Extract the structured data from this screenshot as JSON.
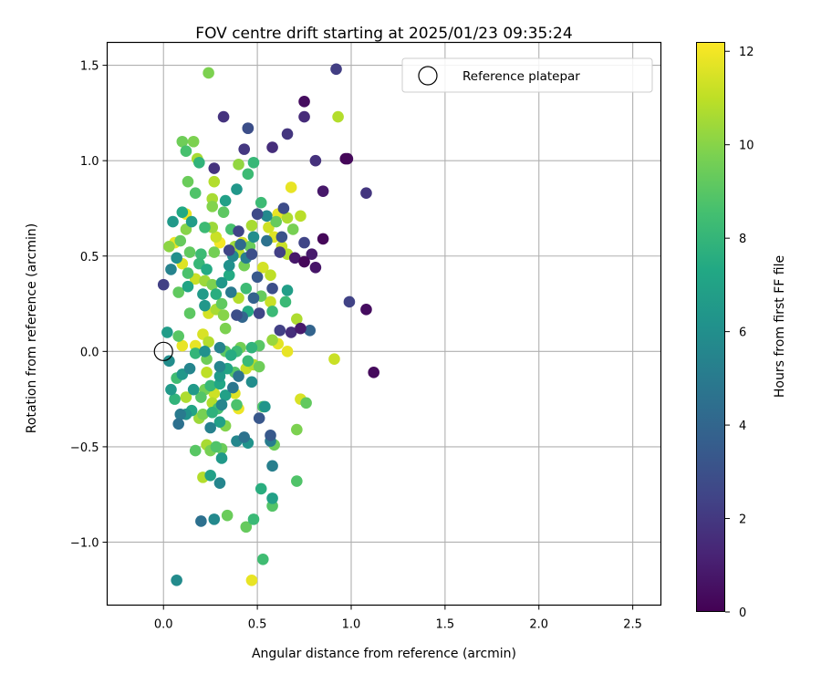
{
  "chart_data": {
    "type": "scatter",
    "title": "FOV centre drift starting at 2025/01/23 09:35:24",
    "xlabel": "Angular distance from reference (arcmin)",
    "ylabel": "Rotation from reference (arcmin)",
    "xlim": [
      -0.3,
      2.65
    ],
    "ylim": [
      -1.33,
      1.62
    ],
    "xticks": [
      0.0,
      0.5,
      1.0,
      1.5,
      2.0,
      2.5
    ],
    "xtick_labels": [
      "0.0",
      "0.5",
      "1.0",
      "1.5",
      "2.0",
      "2.5"
    ],
    "yticks": [
      -1.0,
      -0.5,
      0.0,
      0.5,
      1.0,
      1.5
    ],
    "ytick_labels": [
      "−1.0",
      "−0.5",
      "0.0",
      "0.5",
      "1.0",
      "1.5"
    ],
    "grid": true,
    "legend": {
      "placement": "top-right",
      "entries": [
        "Reference platepar"
      ]
    },
    "reference_point": {
      "x": 0.0,
      "y": 0.0,
      "label": "Reference platepar"
    },
    "colorbar": {
      "label": "Hours from first FF file",
      "colormap": "viridis",
      "min": 0,
      "max": 12.2,
      "ticks": [
        0,
        2,
        4,
        6,
        8,
        10,
        12
      ],
      "tick_labels": [
        "0",
        "2",
        "4",
        "6",
        "8",
        "10",
        "12"
      ]
    },
    "points": [
      [
        0.92,
        1.48,
        2.2
      ],
      [
        0.75,
        1.31,
        0.4
      ],
      [
        0.75,
        1.23,
        1.5
      ],
      [
        0.32,
        1.23,
        1.8
      ],
      [
        0.93,
        1.23,
        10.8
      ],
      [
        0.24,
        1.46,
        9.8
      ],
      [
        0.45,
        1.17,
        3.2
      ],
      [
        0.66,
        1.14,
        1.9
      ],
      [
        0.58,
        1.07,
        1.6
      ],
      [
        0.43,
        1.06,
        2.0
      ],
      [
        0.98,
        1.01,
        0.3
      ],
      [
        0.81,
        1.0,
        1.7
      ],
      [
        0.27,
        0.96,
        1.8
      ],
      [
        0.1,
        1.1,
        9.5
      ],
      [
        0.16,
        1.1,
        9.8
      ],
      [
        0.12,
        1.05,
        8.6
      ],
      [
        0.18,
        1.01,
        10.6
      ],
      [
        0.19,
        0.99,
        7.9
      ],
      [
        0.4,
        0.98,
        10.2
      ],
      [
        0.48,
        0.99,
        8.1
      ],
      [
        0.45,
        0.93,
        8.3
      ],
      [
        0.13,
        0.89,
        9.4
      ],
      [
        0.27,
        0.89,
        10.8
      ],
      [
        0.68,
        0.86,
        11.8
      ],
      [
        0.85,
        0.84,
        0.8
      ],
      [
        1.08,
        0.83,
        1.9
      ],
      [
        0.17,
        0.83,
        8.8
      ],
      [
        0.26,
        0.8,
        10.6
      ],
      [
        0.33,
        0.79,
        6.9
      ],
      [
        0.39,
        0.85,
        6.4
      ],
      [
        0.26,
        0.76,
        9.9
      ],
      [
        0.52,
        0.78,
        8.3
      ],
      [
        0.64,
        0.75,
        2.8
      ],
      [
        0.73,
        0.71,
        10.9
      ],
      [
        0.32,
        0.73,
        9.1
      ],
      [
        0.12,
        0.72,
        11.8
      ],
      [
        0.1,
        0.73,
        7.3
      ],
      [
        0.05,
        0.68,
        6.5
      ],
      [
        0.15,
        0.68,
        6.7
      ],
      [
        0.22,
        0.65,
        8.3
      ],
      [
        0.26,
        0.65,
        10.4
      ],
      [
        0.4,
        0.63,
        2.5
      ],
      [
        0.48,
        0.6,
        5.9
      ],
      [
        0.56,
        0.65,
        11.3
      ],
      [
        0.6,
        0.68,
        9.3
      ],
      [
        0.66,
        0.7,
        10.7
      ],
      [
        0.69,
        0.64,
        9.7
      ],
      [
        0.12,
        0.64,
        10.0
      ],
      [
        0.09,
        0.58,
        9.3
      ],
      [
        0.03,
        0.55,
        10.1
      ],
      [
        0.06,
        0.57,
        11.8
      ],
      [
        0.0,
        0.35,
        2.3
      ],
      [
        0.04,
        0.43,
        5.4
      ],
      [
        0.07,
        0.49,
        6.0
      ],
      [
        0.1,
        0.46,
        11.6
      ],
      [
        0.14,
        0.52,
        9.2
      ],
      [
        0.2,
        0.51,
        8.3
      ],
      [
        0.23,
        0.43,
        7.4
      ],
      [
        0.27,
        0.52,
        9.6
      ],
      [
        0.3,
        0.57,
        12.0
      ],
      [
        0.35,
        0.53,
        2.5
      ],
      [
        0.38,
        0.55,
        10.4
      ],
      [
        0.4,
        0.52,
        10.9
      ],
      [
        0.42,
        0.57,
        11.4
      ],
      [
        0.44,
        0.49,
        5.1
      ],
      [
        0.47,
        0.51,
        2.9
      ],
      [
        0.47,
        0.66,
        10.6
      ],
      [
        0.5,
        0.72,
        2.7
      ],
      [
        0.55,
        0.71,
        5.7
      ],
      [
        0.59,
        0.6,
        11.6
      ],
      [
        0.63,
        0.55,
        11.2
      ],
      [
        0.63,
        0.6,
        3.1
      ],
      [
        0.66,
        0.51,
        10.8
      ],
      [
        0.7,
        0.49,
        0.8
      ],
      [
        0.75,
        0.57,
        2.5
      ],
      [
        0.79,
        0.51,
        0.9
      ],
      [
        0.75,
        0.47,
        0.2
      ],
      [
        0.81,
        0.44,
        0.7
      ],
      [
        0.85,
        0.59,
        0.2
      ],
      [
        0.08,
        0.31,
        9.2
      ],
      [
        0.13,
        0.41,
        8.7
      ],
      [
        0.13,
        0.34,
        7.1
      ],
      [
        0.17,
        0.38,
        11.2
      ],
      [
        0.22,
        0.37,
        10.4
      ],
      [
        0.26,
        0.35,
        9.8
      ],
      [
        0.28,
        0.3,
        7.6
      ],
      [
        0.31,
        0.36,
        6.4
      ],
      [
        0.36,
        0.31,
        5.0
      ],
      [
        0.4,
        0.28,
        10.8
      ],
      [
        0.44,
        0.33,
        8.3
      ],
      [
        0.5,
        0.39,
        3.4
      ],
      [
        0.53,
        0.44,
        11.4
      ],
      [
        0.57,
        0.4,
        11.0
      ],
      [
        0.58,
        0.33,
        2.9
      ],
      [
        0.52,
        0.29,
        9.3
      ],
      [
        0.57,
        0.26,
        11.2
      ],
      [
        0.66,
        0.32,
        6.8
      ],
      [
        0.65,
        0.26,
        8.2
      ],
      [
        0.14,
        0.2,
        9.1
      ],
      [
        0.22,
        0.24,
        6.4
      ],
      [
        0.24,
        0.2,
        11.4
      ],
      [
        0.28,
        0.22,
        10.6
      ],
      [
        0.32,
        0.19,
        10.0
      ],
      [
        0.39,
        0.19,
        2.9
      ],
      [
        0.42,
        0.18,
        4.0
      ],
      [
        0.45,
        0.21,
        7.4
      ],
      [
        0.58,
        0.21,
        8.2
      ],
      [
        0.62,
        0.11,
        2.3
      ],
      [
        0.68,
        0.1,
        1.6
      ],
      [
        0.71,
        0.17,
        10.7
      ],
      [
        0.73,
        0.12,
        0.9
      ],
      [
        0.78,
        0.11,
        3.9
      ],
      [
        0.99,
        0.26,
        2.4
      ],
      [
        1.08,
        0.22,
        0.4
      ],
      [
        1.12,
        -0.11,
        0.3
      ],
      [
        0.91,
        -0.04,
        11.2
      ],
      [
        0.02,
        0.1,
        6.7
      ],
      [
        0.08,
        0.08,
        9.0
      ],
      [
        0.1,
        0.03,
        11.8
      ],
      [
        0.17,
        0.03,
        11.8
      ],
      [
        0.21,
        0.09,
        11.5
      ],
      [
        0.24,
        0.05,
        10.8
      ],
      [
        0.22,
        0.0,
        6.1
      ],
      [
        0.3,
        0.02,
        5.4
      ],
      [
        0.33,
        0.0,
        9.1
      ],
      [
        0.36,
        -0.02,
        7.5
      ],
      [
        0.39,
        0.0,
        8.3
      ],
      [
        0.41,
        0.02,
        9.6
      ],
      [
        0.47,
        0.02,
        7.9
      ],
      [
        0.51,
        0.03,
        9.0
      ],
      [
        0.58,
        0.06,
        10.3
      ],
      [
        0.61,
        0.04,
        11.7
      ],
      [
        0.66,
        0.0,
        11.8
      ],
      [
        0.03,
        -0.05,
        5.9
      ],
      [
        0.07,
        -0.14,
        8.4
      ],
      [
        0.1,
        -0.12,
        6.4
      ],
      [
        0.14,
        -0.09,
        5.5
      ],
      [
        0.17,
        -0.01,
        8.0
      ],
      [
        0.23,
        -0.04,
        9.5
      ],
      [
        0.23,
        -0.11,
        11.0
      ],
      [
        0.3,
        -0.08,
        5.5
      ],
      [
        0.34,
        -0.09,
        7.1
      ],
      [
        0.38,
        -0.11,
        8.9
      ],
      [
        0.4,
        -0.13,
        4.7
      ],
      [
        0.44,
        -0.09,
        11.2
      ],
      [
        0.48,
        -0.07,
        10.8
      ],
      [
        0.51,
        -0.08,
        9.5
      ],
      [
        0.04,
        -0.2,
        6.5
      ],
      [
        0.06,
        -0.25,
        7.9
      ],
      [
        0.12,
        -0.24,
        10.7
      ],
      [
        0.16,
        -0.2,
        6.5
      ],
      [
        0.2,
        -0.24,
        8.9
      ],
      [
        0.22,
        -0.2,
        9.6
      ],
      [
        0.25,
        -0.18,
        8.1
      ],
      [
        0.27,
        -0.22,
        11.3
      ],
      [
        0.3,
        -0.17,
        7.2
      ],
      [
        0.3,
        -0.13,
        6.6
      ],
      [
        0.33,
        -0.23,
        6.9
      ],
      [
        0.38,
        -0.22,
        11.6
      ],
      [
        0.26,
        -0.27,
        10.8
      ],
      [
        0.39,
        -0.28,
        8.7
      ],
      [
        0.4,
        -0.3,
        11.9
      ],
      [
        0.53,
        -0.29,
        8.8
      ],
      [
        0.54,
        -0.29,
        6.3
      ],
      [
        0.73,
        -0.25,
        11.5
      ],
      [
        0.76,
        -0.27,
        9.2
      ],
      [
        0.09,
        -0.33,
        5.0
      ],
      [
        0.12,
        -0.33,
        6.2
      ],
      [
        0.15,
        -0.31,
        7.1
      ],
      [
        0.19,
        -0.35,
        10.4
      ],
      [
        0.21,
        -0.33,
        9.7
      ],
      [
        0.26,
        -0.32,
        7.8
      ],
      [
        0.29,
        -0.3,
        8.5
      ],
      [
        0.25,
        -0.4,
        5.3
      ],
      [
        0.3,
        -0.37,
        6.9
      ],
      [
        0.33,
        -0.39,
        9.9
      ],
      [
        0.51,
        -0.35,
        3.3
      ],
      [
        0.08,
        -0.38,
        4.5
      ],
      [
        0.39,
        -0.47,
        5.6
      ],
      [
        0.43,
        -0.45,
        4.6
      ],
      [
        0.45,
        -0.48,
        6.2
      ],
      [
        0.57,
        -0.44,
        3.4
      ],
      [
        0.57,
        -0.47,
        5.1
      ],
      [
        0.59,
        -0.49,
        9.5
      ],
      [
        0.71,
        -0.41,
        9.8
      ],
      [
        0.17,
        -0.52,
        9.0
      ],
      [
        0.23,
        -0.49,
        10.6
      ],
      [
        0.25,
        -0.52,
        9.7
      ],
      [
        0.28,
        -0.5,
        8.8
      ],
      [
        0.31,
        -0.51,
        9.4
      ],
      [
        0.31,
        -0.56,
        6.5
      ],
      [
        0.58,
        -0.6,
        5.2
      ],
      [
        0.21,
        -0.66,
        10.8
      ],
      [
        0.25,
        -0.65,
        6.9
      ],
      [
        0.3,
        -0.69,
        5.5
      ],
      [
        0.52,
        -0.72,
        7.6
      ],
      [
        0.58,
        -0.77,
        6.9
      ],
      [
        0.58,
        -0.81,
        8.9
      ],
      [
        0.71,
        -0.68,
        8.8
      ],
      [
        0.2,
        -0.89,
        4.5
      ],
      [
        0.27,
        -0.88,
        5.7
      ],
      [
        0.34,
        -0.86,
        9.4
      ],
      [
        0.44,
        -0.92,
        9.3
      ],
      [
        0.48,
        -0.88,
        8.2
      ],
      [
        0.53,
        -1.09,
        8.4
      ],
      [
        0.07,
        -1.2,
        5.8
      ],
      [
        0.47,
        -1.2,
        11.8
      ],
      [
        0.97,
        1.01,
        0.2
      ],
      [
        0.45,
        1.17,
        2.9
      ],
      [
        0.37,
        0.5,
        5.7
      ],
      [
        0.41,
        0.56,
        4.2
      ],
      [
        0.35,
        0.45,
        6.1
      ],
      [
        0.43,
        0.45,
        9.6
      ],
      [
        0.19,
        0.46,
        8.1
      ],
      [
        0.55,
        0.58,
        4.6
      ],
      [
        0.61,
        0.72,
        11.8
      ],
      [
        0.62,
        0.52,
        2.3
      ],
      [
        0.35,
        0.4,
        7.4
      ],
      [
        0.48,
        0.28,
        3.8
      ],
      [
        0.31,
        0.25,
        9.2
      ],
      [
        0.21,
        0.3,
        6.6
      ],
      [
        0.28,
        0.6,
        11.2
      ],
      [
        0.46,
        0.55,
        9.4
      ],
      [
        0.36,
        0.64,
        8.6
      ],
      [
        0.51,
        0.2,
        2.5
      ],
      [
        0.33,
        0.12,
        9.8
      ],
      [
        0.45,
        -0.05,
        8.2
      ],
      [
        0.37,
        -0.19,
        4.8
      ],
      [
        0.47,
        -0.16,
        5.9
      ],
      [
        0.31,
        -0.28,
        5.5
      ]
    ]
  }
}
